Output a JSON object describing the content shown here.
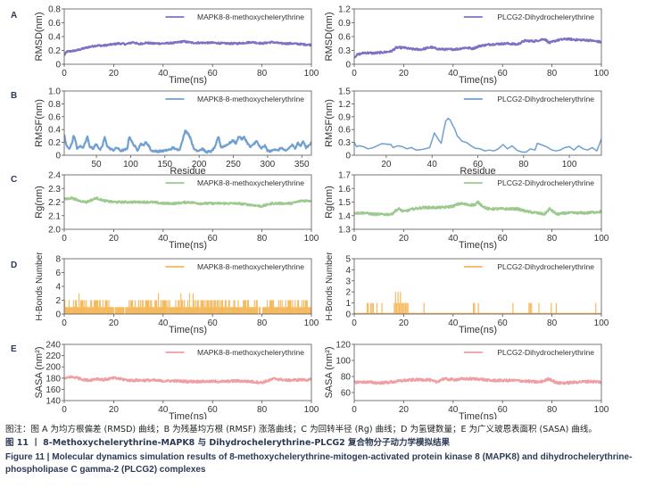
{
  "caption": {
    "note": "图注：图 A 为均方根偏差 (RMSD) 曲线；B 为残基均方根 (RMSF) 涨落曲线；C 为回转半径 (Rg) 曲线；D 为氢键数量；E 为广义玻恩表面积 (SASA) 曲线。",
    "title_cn": "图 11 丨 8-Methoxychelerythrine-MAPK8 与 Dihydrochelerythrine-PLCG2 复合物分子动力学模拟结果",
    "title_en_line1": "Figure 11  |  Molecular dynamics simulation results of 8-methoxychelerythrine-mitogen-activated protein kinase 8 (MAPK8) and dihydrochelerythrine-",
    "title_en_line2": "phospholipase C gamma-2 (PLCG2) complexes"
  },
  "colors": {
    "rmsd": "#7b72c4",
    "rmsf": "#6f9fd3",
    "rg": "#9cc98e",
    "hbond": "#f6b95c",
    "sasa": "#ef9fa3",
    "panel_letter": "#2b3a55"
  },
  "chart_data": [
    {
      "id": "A-left",
      "panel": "A",
      "type": "line",
      "series_color": "rmsd",
      "legend": "MAPK8-8-methoxychelerythrine",
      "xlabel": "Time(ns)",
      "ylabel": "RMSD(nm)",
      "xlim": [
        0,
        100
      ],
      "ylim": [
        0,
        0.8
      ],
      "xticks": [
        0,
        20,
        40,
        60,
        80,
        100
      ],
      "yticks": [
        0,
        0.2,
        0.4,
        0.6,
        0.8
      ],
      "ytick_labels": [
        "0",
        "0.2",
        "0.4",
        "0.6",
        "0.8"
      ],
      "x": [
        0,
        1,
        3,
        5,
        8,
        10,
        13,
        16,
        20,
        22,
        25,
        28,
        30,
        33,
        36,
        40,
        45,
        48,
        52,
        56,
        60,
        65,
        70,
        76,
        80,
        84,
        88,
        92,
        96,
        100
      ],
      "values": [
        0.13,
        0.18,
        0.19,
        0.2,
        0.23,
        0.25,
        0.27,
        0.27,
        0.29,
        0.3,
        0.29,
        0.32,
        0.29,
        0.31,
        0.3,
        0.3,
        0.31,
        0.33,
        0.31,
        0.31,
        0.31,
        0.3,
        0.3,
        0.32,
        0.3,
        0.32,
        0.3,
        0.3,
        0.29,
        0.28
      ],
      "noise": 0.012
    },
    {
      "id": "A-right",
      "panel": "A",
      "type": "line",
      "series_color": "rmsd",
      "legend": "PLCG2-Dihydrochelerythrine",
      "xlabel": "Time(ns)",
      "ylabel": "RMSD(nm)",
      "xlim": [
        0,
        100
      ],
      "ylim": [
        0,
        1.2
      ],
      "xticks": [
        0,
        20,
        40,
        60,
        80,
        100
      ],
      "yticks": [
        0,
        0.3,
        0.6,
        0.9,
        1.2
      ],
      "ytick_labels": [
        "0",
        "0.3",
        "0.6",
        "0.9",
        "1.2"
      ],
      "x": [
        0,
        1,
        4,
        8,
        12,
        15,
        17,
        20,
        23,
        27,
        31,
        34,
        38,
        42,
        45,
        48,
        51,
        55,
        58,
        62,
        66,
        69,
        73,
        77,
        79,
        82,
        86,
        90,
        95,
        100
      ],
      "values": [
        0.15,
        0.2,
        0.25,
        0.24,
        0.26,
        0.28,
        0.36,
        0.36,
        0.33,
        0.32,
        0.37,
        0.33,
        0.32,
        0.33,
        0.36,
        0.34,
        0.4,
        0.43,
        0.44,
        0.45,
        0.43,
        0.51,
        0.5,
        0.55,
        0.46,
        0.52,
        0.55,
        0.53,
        0.52,
        0.48
      ],
      "noise": 0.02
    },
    {
      "id": "B-left",
      "panel": "B",
      "type": "line",
      "series_color": "rmsf",
      "legend": "MAPK8-8-methoxychelerythrine",
      "xlabel": "Residue",
      "ylabel": "RMSF(nm)",
      "xlim": [
        3,
        364
      ],
      "ylim": [
        0,
        1.0
      ],
      "xticks": [
        50,
        100,
        150,
        200,
        250,
        300,
        350
      ],
      "yticks": [
        0,
        0.2,
        0.4,
        0.6,
        0.8,
        1.0
      ],
      "ytick_labels": [
        "0",
        "0.2",
        "0.4",
        "0.6",
        "0.8",
        "1.0"
      ],
      "x": [
        3,
        6,
        10,
        14,
        17,
        22,
        26,
        30,
        34,
        37,
        40,
        45,
        50,
        55,
        58,
        62,
        66,
        70,
        75,
        80,
        85,
        90,
        95,
        98,
        102,
        106,
        110,
        115,
        118,
        122,
        126,
        130,
        140,
        150,
        158,
        162,
        168,
        172,
        176,
        180,
        184,
        188,
        192,
        198,
        205,
        210,
        218,
        224,
        228,
        232,
        240,
        246,
        250,
        254,
        258,
        262,
        266,
        270,
        275,
        280,
        284,
        290,
        296,
        300,
        305,
        310,
        315,
        320,
        326,
        332,
        336,
        340,
        344,
        348,
        352,
        356,
        360,
        364
      ],
      "values": [
        0.32,
        0.15,
        0.1,
        0.18,
        0.32,
        0.1,
        0.14,
        0.12,
        0.2,
        0.3,
        0.14,
        0.1,
        0.18,
        0.08,
        0.12,
        0.28,
        0.14,
        0.1,
        0.08,
        0.12,
        0.07,
        0.08,
        0.1,
        0.3,
        0.2,
        0.14,
        0.08,
        0.18,
        0.15,
        0.2,
        0.16,
        0.07,
        0.06,
        0.07,
        0.09,
        0.12,
        0.08,
        0.1,
        0.25,
        0.38,
        0.34,
        0.25,
        0.1,
        0.07,
        0.1,
        0.05,
        0.06,
        0.14,
        0.3,
        0.12,
        0.16,
        0.2,
        0.23,
        0.18,
        0.3,
        0.25,
        0.28,
        0.2,
        0.12,
        0.18,
        0.22,
        0.1,
        0.15,
        0.07,
        0.06,
        0.1,
        0.07,
        0.12,
        0.06,
        0.12,
        0.16,
        0.1,
        0.2,
        0.14,
        0.22,
        0.12,
        0.15,
        0.2
      ],
      "noise": 0.015
    },
    {
      "id": "B-right",
      "panel": "B",
      "type": "line",
      "series_color": "rmsf",
      "legend": "PLCG2-Dihydrochelerythrine",
      "xlabel": "Residue",
      "ylabel": "RMSF(nm)",
      "xlim": [
        6,
        114
      ],
      "ylim": [
        0,
        1.5
      ],
      "xticks": [
        20,
        40,
        60,
        80,
        100
      ],
      "yticks": [
        0,
        0.3,
        0.6,
        0.9,
        1.2,
        1.5
      ],
      "ytick_labels": [
        "0",
        "0.3",
        "0.6",
        "0.9",
        "1.2",
        "1.5"
      ],
      "x": [
        6,
        7,
        8,
        10,
        12,
        14,
        16,
        18,
        20,
        22,
        23,
        25,
        27,
        29,
        31,
        33,
        35,
        37,
        39,
        40,
        41,
        43,
        44,
        45,
        46,
        47,
        48,
        49,
        50,
        51,
        52,
        53,
        55,
        57,
        59,
        61,
        63,
        65,
        67,
        69,
        71,
        73,
        75,
        77,
        79,
        81,
        83,
        85,
        86,
        88,
        90,
        92,
        94,
        96,
        98,
        100,
        102,
        104,
        106,
        108,
        110,
        112,
        114
      ],
      "values": [
        0.3,
        0.2,
        0.22,
        0.2,
        0.15,
        0.17,
        0.22,
        0.27,
        0.26,
        0.25,
        0.18,
        0.22,
        0.2,
        0.15,
        0.18,
        0.12,
        0.13,
        0.15,
        0.18,
        0.35,
        0.52,
        0.35,
        0.28,
        0.55,
        0.8,
        0.86,
        0.82,
        0.7,
        0.6,
        0.45,
        0.4,
        0.33,
        0.3,
        0.22,
        0.16,
        0.15,
        0.1,
        0.12,
        0.1,
        0.15,
        0.25,
        0.15,
        0.22,
        0.12,
        0.08,
        0.07,
        0.15,
        0.12,
        0.28,
        0.24,
        0.2,
        0.13,
        0.1,
        0.12,
        0.18,
        0.2,
        0.12,
        0.22,
        0.15,
        0.12,
        0.18,
        0.1,
        0.38
      ],
      "noise": 0.0
    },
    {
      "id": "C-left",
      "panel": "C",
      "type": "line",
      "series_color": "rg",
      "legend": "MAPK8-8-methoxychelerythrine",
      "xlabel": "Time(ns)",
      "ylabel": "Rg(nm)",
      "xlim": [
        0,
        100
      ],
      "ylim": [
        2.0,
        2.4
      ],
      "xticks": [
        0,
        20,
        40,
        60,
        80,
        100
      ],
      "yticks": [
        2.0,
        2.1,
        2.2,
        2.3,
        2.4
      ],
      "ytick_labels": [
        "2.0",
        "2.1",
        "2.2",
        "2.3",
        "2.4"
      ],
      "x": [
        0,
        3,
        6,
        9,
        13,
        16,
        20,
        25,
        30,
        35,
        40,
        45,
        50,
        55,
        60,
        65,
        70,
        75,
        80,
        84,
        88,
        92,
        96,
        100
      ],
      "values": [
        2.22,
        2.23,
        2.21,
        2.2,
        2.23,
        2.21,
        2.2,
        2.2,
        2.2,
        2.2,
        2.19,
        2.19,
        2.2,
        2.19,
        2.19,
        2.19,
        2.19,
        2.18,
        2.17,
        2.19,
        2.19,
        2.19,
        2.21,
        2.21
      ],
      "noise": 0.007
    },
    {
      "id": "C-right",
      "panel": "C",
      "type": "line",
      "series_color": "rg",
      "legend": "PLCG2-Dihydrochelerythrine",
      "xlabel": "Time(ns)",
      "ylabel": "Rg(nm)",
      "xlim": [
        0,
        100
      ],
      "ylim": [
        1.3,
        1.7
      ],
      "xticks": [
        0,
        20,
        40,
        60,
        80,
        100
      ],
      "yticks": [
        1.3,
        1.4,
        1.5,
        1.6,
        1.7
      ],
      "ytick_labels": [
        "1.3",
        "1.4",
        "1.5",
        "1.6",
        "1.7"
      ],
      "x": [
        0,
        4,
        8,
        12,
        15,
        17,
        18,
        20,
        24,
        28,
        32,
        36,
        40,
        43,
        46,
        49,
        50,
        52,
        54,
        58,
        62,
        66,
        68,
        70,
        74,
        77,
        79,
        82,
        86,
        90,
        94,
        100
      ],
      "values": [
        1.42,
        1.42,
        1.41,
        1.41,
        1.41,
        1.44,
        1.45,
        1.43,
        1.45,
        1.46,
        1.46,
        1.46,
        1.47,
        1.49,
        1.48,
        1.48,
        1.5,
        1.47,
        1.45,
        1.45,
        1.45,
        1.45,
        1.44,
        1.43,
        1.42,
        1.41,
        1.45,
        1.41,
        1.42,
        1.42,
        1.42,
        1.43
      ],
      "noise": 0.008
    },
    {
      "id": "D-left",
      "panel": "D",
      "type": "bar",
      "series_color": "hbond",
      "legend": "MAPK8-8-methoxychelerythrine",
      "xlabel": "Time(ns)",
      "ylabel": "H-Bonds Number",
      "xlim": [
        0,
        100
      ],
      "ylim": [
        0,
        8
      ],
      "xticks": [
        0,
        20,
        40,
        60,
        80,
        100
      ],
      "yticks": [
        0,
        2,
        4,
        6,
        8
      ],
      "ytick_labels": [
        "0",
        "2",
        "4",
        "6",
        "8"
      ],
      "segments": [
        {
          "from": 0,
          "to": 4,
          "level": 2
        },
        {
          "from": 4,
          "to": 7,
          "level": 3
        },
        {
          "from": 7,
          "to": 18,
          "level": 2
        },
        {
          "from": 18,
          "to": 25,
          "level": 1
        },
        {
          "from": 25,
          "to": 33,
          "level": 2
        },
        {
          "from": 33,
          "to": 40,
          "level": 3
        },
        {
          "from": 40,
          "to": 47,
          "level": 2
        },
        {
          "from": 47,
          "to": 53,
          "level": 3
        },
        {
          "from": 53,
          "to": 78,
          "level": 2
        },
        {
          "from": 78,
          "to": 82,
          "level": 1
        },
        {
          "from": 82,
          "to": 100,
          "level": 2
        }
      ],
      "noise": 0
    },
    {
      "id": "D-right",
      "panel": "D",
      "type": "bar",
      "series_color": "hbond",
      "legend": "PLCG2-Dihydrochelerythrine",
      "xlabel": "Time(ns)",
      "ylabel": "H-Bonds Number",
      "xlim": [
        0,
        100
      ],
      "ylim": [
        0,
        5
      ],
      "xticks": [
        0,
        20,
        40,
        60,
        80,
        100
      ],
      "yticks": [
        0,
        1,
        2,
        3,
        4,
        5
      ],
      "ytick_labels": [
        "0",
        "1",
        "2",
        "3",
        "4",
        "5"
      ],
      "events": [
        {
          "t": 5,
          "n": 1
        },
        {
          "t": 5.5,
          "n": 1
        },
        {
          "t": 6.5,
          "n": 1
        },
        {
          "t": 7,
          "n": 1
        },
        {
          "t": 7.5,
          "n": 1
        },
        {
          "t": 9,
          "n": 1
        },
        {
          "t": 11,
          "n": 1
        },
        {
          "t": 16,
          "n": 1
        },
        {
          "t": 16.5,
          "n": 2
        },
        {
          "t": 17,
          "n": 1
        },
        {
          "t": 17.5,
          "n": 2
        },
        {
          "t": 18,
          "n": 1
        },
        {
          "t": 18.5,
          "n": 2
        },
        {
          "t": 19,
          "n": 1
        },
        {
          "t": 19.5,
          "n": 1
        },
        {
          "t": 20,
          "n": 1
        },
        {
          "t": 20.5,
          "n": 1
        },
        {
          "t": 21,
          "n": 1
        },
        {
          "t": 21.5,
          "n": 1
        },
        {
          "t": 28,
          "n": 1
        },
        {
          "t": 48,
          "n": 1
        },
        {
          "t": 48.5,
          "n": 1
        },
        {
          "t": 50,
          "n": 1
        },
        {
          "t": 64,
          "n": 1
        },
        {
          "t": 70.5,
          "n": 1
        },
        {
          "t": 71,
          "n": 1
        },
        {
          "t": 71.5,
          "n": 1
        },
        {
          "t": 74.5,
          "n": 1
        },
        {
          "t": 79.5,
          "n": 1
        },
        {
          "t": 81.5,
          "n": 1
        },
        {
          "t": 97.5,
          "n": 1
        }
      ],
      "noise": 0
    },
    {
      "id": "E-left",
      "panel": "E",
      "type": "line",
      "series_color": "sasa",
      "legend": "MAPK8-8-methoxychelerythrine",
      "xlabel": "Time(ns)",
      "ylabel": "SASA (nm²)",
      "xlim": [
        0,
        100
      ],
      "ylim": [
        140,
        240
      ],
      "xticks": [
        0,
        20,
        40,
        60,
        80,
        100
      ],
      "yticks": [
        140,
        160,
        180,
        200,
        220,
        240
      ],
      "ytick_labels": [
        "140",
        "160",
        "180",
        "200",
        "220",
        "240"
      ],
      "x": [
        0,
        2,
        5,
        8,
        10,
        13,
        16,
        20,
        22,
        26,
        30,
        35,
        40,
        45,
        50,
        55,
        60,
        65,
        70,
        75,
        80,
        85,
        90,
        95,
        100
      ],
      "values": [
        178,
        182,
        181,
        177,
        176,
        179,
        177,
        180,
        179,
        176,
        176,
        176,
        175,
        175,
        174,
        174,
        174,
        174,
        175,
        174,
        172,
        179,
        176,
        177,
        177
      ],
      "noise": 2.0
    },
    {
      "id": "E-right",
      "panel": "E",
      "type": "line",
      "series_color": "sasa",
      "legend": "PLCG2-Dihydrochelerythrine",
      "xlabel": "Time(ns)",
      "ylabel": "SASA (nm²)",
      "xlim": [
        0,
        100
      ],
      "ylim": [
        50,
        120
      ],
      "xticks": [
        0,
        20,
        40,
        60,
        80,
        100
      ],
      "yticks": [
        60,
        80,
        100,
        120
      ],
      "ytick_labels": [
        "60",
        "80",
        "100",
        "120"
      ],
      "x": [
        0,
        5,
        10,
        15,
        20,
        25,
        30,
        33,
        36,
        40,
        45,
        50,
        55,
        60,
        65,
        70,
        75,
        79,
        82,
        86,
        90,
        95,
        100
      ],
      "values": [
        73,
        73,
        72,
        73,
        75,
        76,
        76,
        73,
        77,
        76,
        77,
        77,
        75,
        75,
        75,
        74,
        73,
        77,
        72,
        72,
        73,
        74,
        73
      ],
      "noise": 1.5
    }
  ],
  "panel_letters": [
    "A",
    "B",
    "C",
    "D",
    "E"
  ]
}
